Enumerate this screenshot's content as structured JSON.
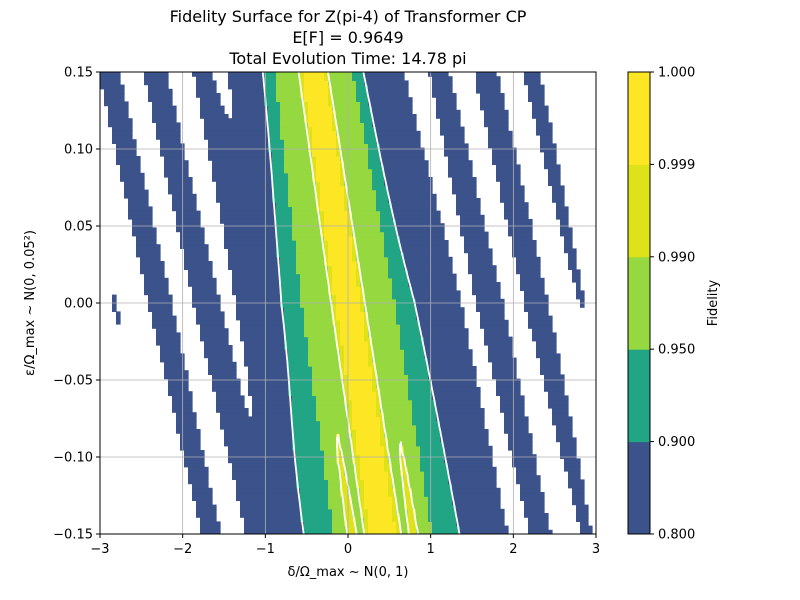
{
  "chart_data": {
    "type": "heatmap",
    "subtype": "filled-contour",
    "title_lines": [
      "Fidelity Surface for Z(pi-4) of Transformer CP",
      "E[F] = 0.9649",
      "Total Evolution Time: 14.78 pi"
    ],
    "xlabel": "δ/Ω_max ~ N(0, 1)",
    "ylabel": "ε/Ω_max ~ N(0, 0.05²)",
    "xlim": [
      -3,
      3
    ],
    "ylim": [
      -0.15,
      0.15
    ],
    "x_ticks": [
      -3,
      -2,
      -1,
      0,
      1,
      2,
      3
    ],
    "x_tick_labels": [
      "−3",
      "−2",
      "−1",
      "0",
      "1",
      "2",
      "3"
    ],
    "y_ticks": [
      -0.15,
      -0.1,
      -0.05,
      0.0,
      0.05,
      0.1,
      0.15
    ],
    "y_tick_labels": [
      "−0.15",
      "−0.10",
      "−0.05",
      "0.00",
      "0.05",
      "0.10",
      "0.15"
    ],
    "grid": true,
    "contour_line_color": "#ffffff",
    "colorbar": {
      "label": "Fidelity",
      "levels": [
        0.8,
        0.9,
        0.95,
        0.99,
        0.999,
        1.0
      ],
      "tick_labels": [
        "0.800",
        "0.900",
        "0.950",
        "0.990",
        "0.999",
        "1.000"
      ],
      "colors": [
        "#3b528b",
        "#21a585",
        "#95d840",
        "#dde318",
        "#fde725"
      ],
      "below_min_color": "#ffffff"
    },
    "mean_fidelity": 0.9649,
    "total_evolution_time": "14.78 pi"
  }
}
